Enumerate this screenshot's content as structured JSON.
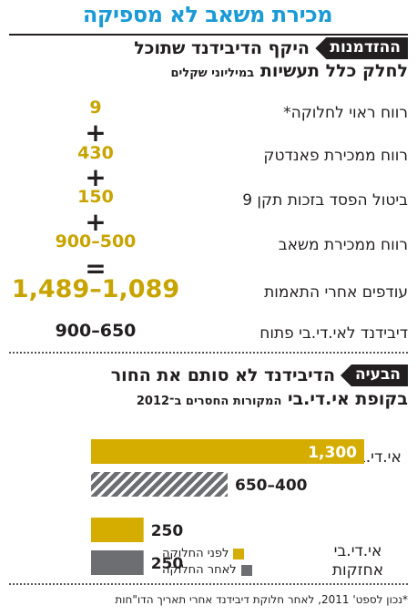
{
  "title": "מכירת משאב לא מספיקה",
  "section1": {
    "badge": "ההזדמנות",
    "heading_line1": "היקף הדיבידנד שתוכל",
    "heading_line2": "לחלק כלל תעשיות",
    "heading_unit": "במיליוני שקלים",
    "rows": [
      {
        "label": "רווח ראוי לחלוקה*",
        "value": "9"
      },
      {
        "label": "רווח ממכירת פאנדטק",
        "value": "430"
      },
      {
        "label": "ביטול הפסד בזכות תקן 9",
        "value": "150"
      },
      {
        "label": "רווח ממכירת משאב",
        "value": "900–500"
      },
      {
        "label": "עודפים אחרי התאמות",
        "value": "1,489–1,089"
      },
      {
        "label": "דיבידנד לאי.די.בי פתוח",
        "value": "900–650"
      }
    ],
    "operators": [
      "+",
      "+",
      "+",
      "="
    ]
  },
  "section2": {
    "badge": "הבעיה",
    "heading_line1": "הדיבידנד לא סותם את החור",
    "heading_line2": "בקופת אי.די.בי",
    "heading_sub": "המקורות החסרים ב־2012"
  },
  "chart_data": {
    "type": "bar",
    "orientation": "horizontal",
    "categories": [
      "אי.די.בי פתוח",
      "אי.די.בי אחזקות"
    ],
    "series": [
      {
        "name": "לפני החלוקה",
        "color": "#d4ad00",
        "values": [
          1300,
          250
        ],
        "labels": [
          "1,300",
          "250"
        ]
      },
      {
        "name": "לאחר החלוקה",
        "color": "#6d6e71",
        "values": [
          [
            400,
            650
          ],
          250
        ],
        "labels": [
          "650–400",
          "250"
        ]
      }
    ],
    "legend_position": "bottom-right"
  },
  "footnote": "*נכון לספט' 2011, לאחר חלוקת דיבידנד אחרי תאריך הדו\"חות"
}
